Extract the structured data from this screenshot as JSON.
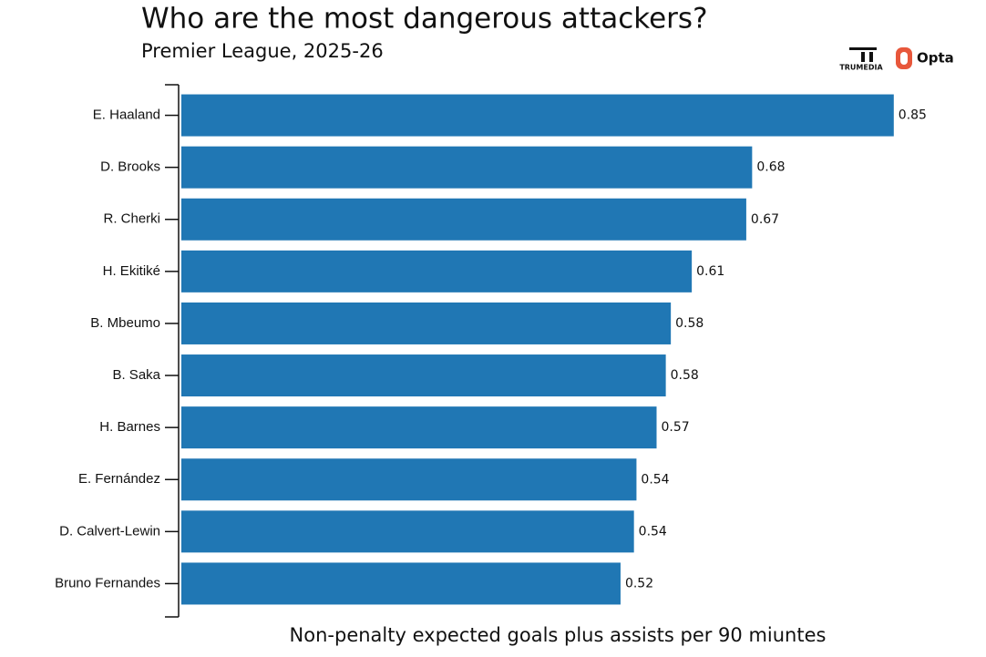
{
  "chart_data": {
    "type": "barh",
    "title": "Who are the most dangerous attackers?",
    "subtitle": "Premier League, 2025-26",
    "x_label": "Non-penalty expected goals plus assists per 90 miuntes",
    "logos": [
      "TRUMEDIA",
      "Opta"
    ],
    "categories": [
      "E. Haaland",
      "D. Brooks",
      "R. Cherki",
      "H. Ekitiké",
      "B. Mbeumo",
      "B. Saka",
      "H. Barnes",
      "E. Fernández",
      "D. Calvert-Lewin",
      "Bruno Fernandes"
    ],
    "values": [
      0.85,
      0.681,
      0.674,
      0.609,
      0.584,
      0.578,
      0.567,
      0.543,
      0.54,
      0.524
    ],
    "value_labels": [
      "0.85",
      "0.68",
      "0.67",
      "0.61",
      "0.58",
      "0.58",
      "0.57",
      "0.54",
      "0.54",
      "0.52"
    ],
    "color": "#2077b4",
    "xlim": [
      0,
      0.86
    ]
  }
}
